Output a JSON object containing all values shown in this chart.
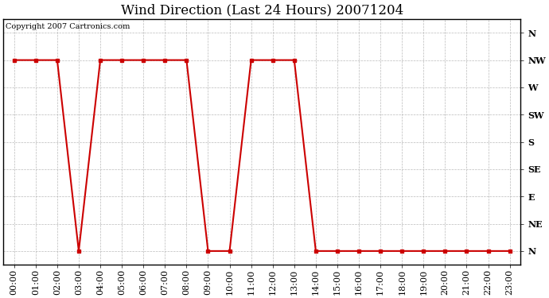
{
  "title": "Wind Direction (Last 24 Hours) 20071204",
  "copyright_text": "Copyright 2007 Cartronics.com",
  "background_color": "#ffffff",
  "plot_bg_color": "#ffffff",
  "line_color": "#cc0000",
  "grid_color": "#aaaaaa",
  "y_labels": [
    "N",
    "NE",
    "E",
    "SE",
    "S",
    "SW",
    "W",
    "NW",
    "N"
  ],
  "hours": [
    0,
    1,
    2,
    3,
    4,
    5,
    6,
    7,
    8,
    9,
    10,
    11,
    12,
    13,
    14,
    15,
    16,
    17,
    18,
    19,
    20,
    21,
    22,
    23
  ],
  "wind_values": [
    7,
    7,
    7,
    0,
    7,
    7,
    7,
    7,
    7,
    0,
    0,
    7,
    7,
    7,
    0,
    0,
    0,
    0,
    0,
    0,
    0,
    0,
    0,
    0
  ],
  "xlim": [
    -0.5,
    23.5
  ],
  "ylim": [
    -0.5,
    8.5
  ],
  "title_fontsize": 12,
  "tick_fontsize": 8,
  "copyright_fontsize": 7
}
